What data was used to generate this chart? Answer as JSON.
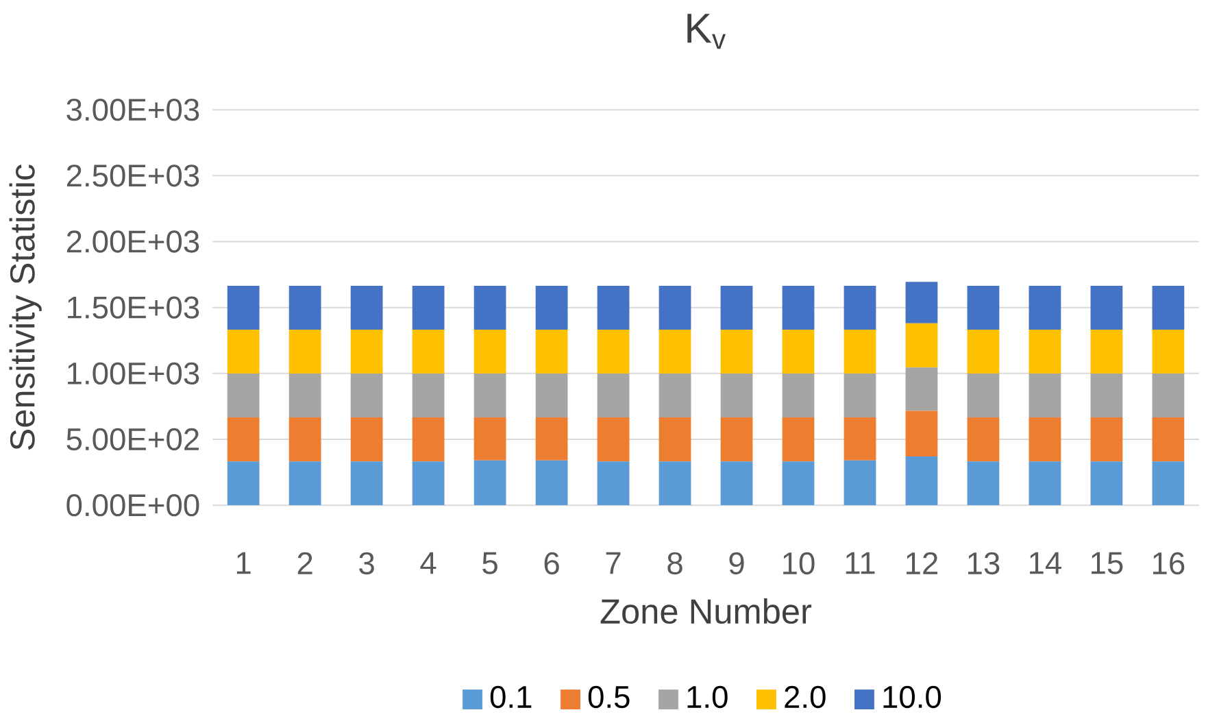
{
  "chart_data": {
    "type": "bar",
    "stacked": true,
    "title": "K$_{v}$",
    "xlabel": "Zone Number",
    "ylabel": "Sensitivity Statistic",
    "categories": [
      "1",
      "2",
      "3",
      "4",
      "5",
      "6",
      "7",
      "8",
      "9",
      "10",
      "11",
      "12",
      "13",
      "14",
      "15",
      "16"
    ],
    "series": [
      {
        "name": "0.1",
        "color": "#5b9bd5",
        "values": [
          333,
          333,
          333,
          333,
          340,
          340,
          333,
          333,
          333,
          333,
          340,
          370,
          333,
          333,
          333,
          333
        ]
      },
      {
        "name": "0.5",
        "color": "#ed7d31",
        "values": [
          333,
          333,
          333,
          333,
          326,
          326,
          333,
          333,
          333,
          333,
          326,
          346,
          333,
          333,
          333,
          333
        ]
      },
      {
        "name": "1.0",
        "color": "#a5a5a5",
        "values": [
          333,
          333,
          333,
          333,
          333,
          333,
          333,
          333,
          333,
          333,
          333,
          329,
          333,
          333,
          333,
          333
        ]
      },
      {
        "name": "2.0",
        "color": "#ffc000",
        "values": [
          333,
          333,
          333,
          333,
          333,
          333,
          333,
          333,
          333,
          333,
          333,
          335,
          333,
          333,
          333,
          333
        ]
      },
      {
        "name": "10.0",
        "color": "#4472c4",
        "values": [
          333,
          333,
          333,
          333,
          333,
          333,
          333,
          333,
          333,
          333,
          333,
          315,
          333,
          333,
          333,
          333
        ]
      }
    ],
    "ylim": [
      0,
      3000
    ],
    "yticks": [
      {
        "value": 0,
        "label": "0.00E+00"
      },
      {
        "value": 500,
        "label": "5.00E+02"
      },
      {
        "value": 1000,
        "label": "1.00E+03"
      },
      {
        "value": 1500,
        "label": "1.50E+03"
      },
      {
        "value": 2000,
        "label": "2.00E+03"
      },
      {
        "value": 2500,
        "label": "2.50E+03"
      },
      {
        "value": 3000,
        "label": "3.00E+03"
      }
    ],
    "grid": "y",
    "legend": "bottom"
  }
}
